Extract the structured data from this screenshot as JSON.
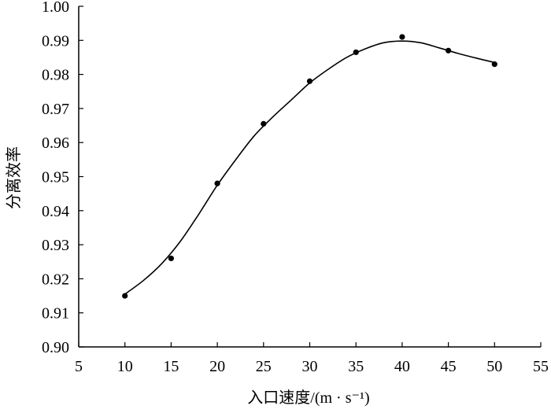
{
  "chart_data": {
    "type": "scatter",
    "title": "",
    "xlabel": "入口速度/(m · s⁻¹)",
    "ylabel": "分离效率",
    "xlim": [
      5,
      55
    ],
    "ylim": [
      0.9,
      1.0
    ],
    "xticks": [
      "5",
      "10",
      "15",
      "20",
      "25",
      "30",
      "35",
      "40",
      "45",
      "50",
      "55"
    ],
    "yticks": [
      "0.90",
      "0.91",
      "0.92",
      "0.93",
      "0.94",
      "0.95",
      "0.96",
      "0.97",
      "0.98",
      "0.99",
      "1.00"
    ],
    "grid": false,
    "legend": "none",
    "series": [
      {
        "kind": "points",
        "x": [
          10,
          15,
          20,
          25,
          30,
          35,
          40,
          45,
          50
        ],
        "y": [
          0.915,
          0.926,
          0.948,
          0.9655,
          0.978,
          0.9865,
          0.991,
          0.987,
          0.983
        ]
      },
      {
        "kind": "fit-curve",
        "x": [
          10,
          12,
          14,
          16,
          18,
          20,
          22,
          24,
          26,
          28,
          30,
          32,
          34,
          36,
          38,
          40,
          42,
          44,
          46,
          48,
          50
        ],
        "y": [
          0.9155,
          0.9195,
          0.9245,
          0.931,
          0.939,
          0.9475,
          0.955,
          0.962,
          0.9675,
          0.9725,
          0.9775,
          0.9815,
          0.985,
          0.9875,
          0.9893,
          0.9898,
          0.9893,
          0.9878,
          0.9862,
          0.9848,
          0.9835
        ]
      }
    ],
    "colors": {
      "points": "#000000",
      "curve": "#000000",
      "axis": "#000000"
    }
  }
}
